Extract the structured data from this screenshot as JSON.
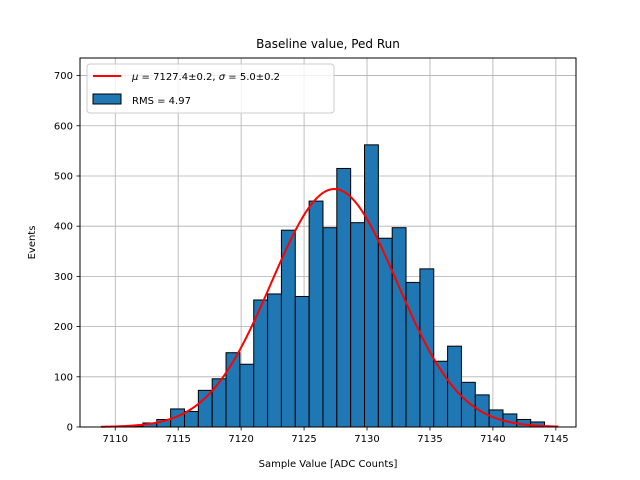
{
  "chart_data": {
    "type": "bar",
    "title": "Baseline value, Ped Run",
    "xlabel": "Sample Value [ADC Counts]",
    "ylabel": "Events",
    "xlim": [
      7107.2,
      7146.6
    ],
    "ylim": [
      0,
      735
    ],
    "xticks": [
      7110,
      7115,
      7120,
      7125,
      7130,
      7135,
      7140,
      7145
    ],
    "yticks": [
      0,
      100,
      200,
      300,
      400,
      500,
      600,
      700
    ],
    "grid": true,
    "legend_position": "top-left",
    "histogram": {
      "name": "RMS = 4.97",
      "color": "#1f77b4",
      "edge_color": "#000000",
      "bin_width": 1.1,
      "bin_starts": [
        7108.9,
        7110.0,
        7111.1,
        7112.2,
        7113.3,
        7114.4,
        7115.5,
        7116.6,
        7117.7,
        7118.8,
        7119.9,
        7121.0,
        7122.1,
        7123.2,
        7124.3,
        7125.4,
        7126.5,
        7127.6,
        7128.7,
        7129.8,
        7130.9,
        7132.0,
        7133.1,
        7134.2,
        7135.3,
        7136.4,
        7137.5,
        7138.6,
        7139.7,
        7140.8,
        7141.9,
        7143.0,
        7144.1
      ],
      "counts": [
        1,
        1,
        2,
        8,
        15,
        36,
        31,
        73,
        96,
        148,
        125,
        253,
        265,
        392,
        260,
        450,
        397,
        515,
        407,
        562,
        376,
        397,
        288,
        315,
        131,
        161,
        89,
        64,
        34,
        26,
        15,
        10,
        0
      ]
    },
    "fit": {
      "name": "μ = 7127.4±0.2, σ = 5.0±0.2",
      "label_mu": "μ",
      "label_mu_rest": " = 7127.4±0.2, ",
      "label_sigma": "σ",
      "label_sigma_rest": " = 5.0±0.2",
      "color": "#ff0000",
      "mean": 7127.4,
      "sigma": 5.0,
      "amplitude": 474,
      "x_range": [
        7108.9,
        7145.2
      ]
    }
  }
}
